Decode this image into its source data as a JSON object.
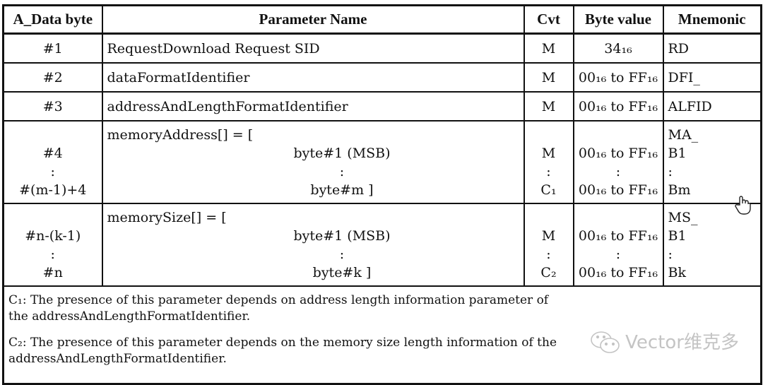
{
  "headers": [
    "A_Data byte",
    "Parameter Name",
    "Cvt",
    "Byte value",
    "Mnemonic"
  ],
  "rows": [
    {
      "byte": [
        "#1"
      ],
      "name": [
        "RequestDownload Request SID"
      ],
      "cvt": [
        "M"
      ],
      "value": [
        "34₁₆"
      ],
      "mnemonic": [
        "RD"
      ]
    },
    {
      "byte": [
        "#2"
      ],
      "name": [
        "dataFormatIdentifier"
      ],
      "cvt": [
        "M"
      ],
      "value": [
        "00₁₆ to FF₁₆"
      ],
      "mnemonic": [
        "DFI_"
      ]
    },
    {
      "byte": [
        "#3"
      ],
      "name": [
        "addressAndLengthFormatIdentifier"
      ],
      "cvt": [
        "M"
      ],
      "value": [
        "00₁₆ to FF₁₆"
      ],
      "mnemonic": [
        "ALFID"
      ]
    },
    {
      "byte": [
        "",
        "#4",
        ":",
        "#(m-1)+4"
      ],
      "name": [
        "memoryAddress[] = [",
        "byte#1 (MSB)",
        ":",
        "byte#m ]"
      ],
      "cvt": [
        "",
        "M",
        ":",
        "C₁"
      ],
      "value": [
        "",
        "00₁₆ to FF₁₆",
        ":",
        "00₁₆ to FF₁₆"
      ],
      "mnemonic": [
        "MA_",
        "B1",
        ":",
        "Bm"
      ]
    },
    {
      "byte": [
        "",
        "#n-(k-1)",
        ":",
        "#n"
      ],
      "name": [
        "memorySize[] = [",
        "byte#1 (MSB)",
        ":",
        "byte#k ]"
      ],
      "cvt": [
        "",
        "M",
        ":",
        "C₂"
      ],
      "value": [
        "",
        "00₁₆ to FF₁₆",
        ":",
        "00₁₆ to FF₁₆"
      ],
      "mnemonic": [
        "MS_",
        "B1",
        ":",
        "Bk"
      ]
    }
  ],
  "notes": [
    "C₁: The presence of this parameter depends on address length information parameter of the addressAndLengthFormatIdentifier.",
    "C₂: The presence of this parameter depends on the memory size length information of the addressAndLengthFormatIdentifier."
  ],
  "watermark": {
    "text": "Vector维克多",
    "icon": "wechat-icon"
  },
  "cursor": {
    "icon": "hand-pointer-icon"
  }
}
